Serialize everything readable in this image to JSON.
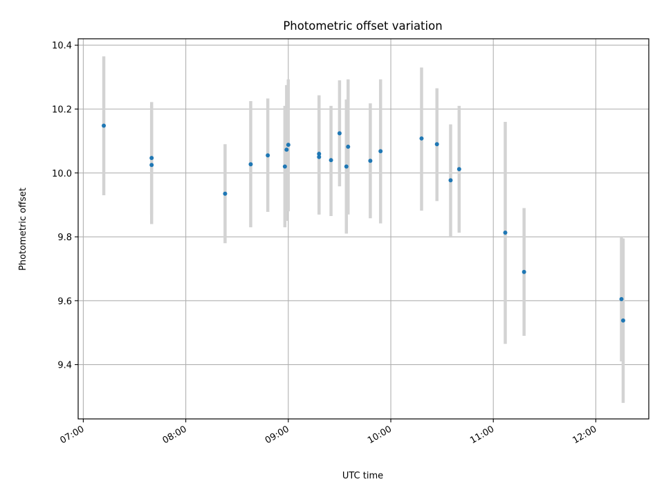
{
  "chart_data": {
    "type": "scatter",
    "title": "Photometric offset variation",
    "xlabel": "UTC time",
    "ylabel": "Photometric offset",
    "x_tick_labels": [
      "07:00",
      "08:00",
      "09:00",
      "10:00",
      "11:00",
      "12:00"
    ],
    "y_tick_labels": [
      "9.4",
      "9.6",
      "9.8",
      "10.0",
      "10.2",
      "10.4"
    ],
    "xlim": [
      "06:57",
      "12:31"
    ],
    "ylim": [
      9.23,
      10.42
    ],
    "grid": true,
    "series": [
      {
        "marker_color": "#1f77b4",
        "errorbar_color": "#d3d3d3",
        "points": [
          {
            "x": "07:12",
            "y": 10.148,
            "ylow": 9.93,
            "yhigh": 10.365
          },
          {
            "x": "07:40",
            "y": 10.047,
            "ylow": 9.87,
            "yhigh": 10.222
          },
          {
            "x": "07:40",
            "y": 10.025,
            "ylow": 9.84,
            "yhigh": 10.21
          },
          {
            "x": "08:23",
            "y": 9.935,
            "ylow": 9.78,
            "yhigh": 10.09
          },
          {
            "x": "08:38",
            "y": 10.027,
            "ylow": 9.83,
            "yhigh": 10.225
          },
          {
            "x": "08:48",
            "y": 10.055,
            "ylow": 9.878,
            "yhigh": 10.233
          },
          {
            "x": "08:58",
            "y": 10.02,
            "ylow": 9.83,
            "yhigh": 10.21
          },
          {
            "x": "08:59",
            "y": 10.073,
            "ylow": 9.85,
            "yhigh": 10.275
          },
          {
            "x": "09:00",
            "y": 10.088,
            "ylow": 9.88,
            "yhigh": 10.293
          },
          {
            "x": "09:18",
            "y": 10.06,
            "ylow": 9.87,
            "yhigh": 10.243
          },
          {
            "x": "09:18",
            "y": 10.05,
            "ylow": 9.87,
            "yhigh": 10.23
          },
          {
            "x": "09:25",
            "y": 10.04,
            "ylow": 9.865,
            "yhigh": 10.21
          },
          {
            "x": "09:30",
            "y": 10.124,
            "ylow": 9.958,
            "yhigh": 10.29
          },
          {
            "x": "09:34",
            "y": 10.02,
            "ylow": 9.81,
            "yhigh": 10.23
          },
          {
            "x": "09:35",
            "y": 10.082,
            "ylow": 9.87,
            "yhigh": 10.293
          },
          {
            "x": "09:48",
            "y": 10.038,
            "ylow": 9.858,
            "yhigh": 10.218
          },
          {
            "x": "09:54",
            "y": 10.068,
            "ylow": 9.842,
            "yhigh": 10.293
          },
          {
            "x": "10:18",
            "y": 10.108,
            "ylow": 9.882,
            "yhigh": 10.33
          },
          {
            "x": "10:27",
            "y": 10.09,
            "ylow": 9.912,
            "yhigh": 10.265
          },
          {
            "x": "10:35",
            "y": 9.977,
            "ylow": 9.8,
            "yhigh": 10.152
          },
          {
            "x": "10:40",
            "y": 10.012,
            "ylow": 9.813,
            "yhigh": 10.21
          },
          {
            "x": "11:07",
            "y": 9.813,
            "ylow": 9.465,
            "yhigh": 10.16
          },
          {
            "x": "11:18",
            "y": 9.69,
            "ylow": 9.49,
            "yhigh": 9.89
          },
          {
            "x": "12:15",
            "y": 9.605,
            "ylow": 9.41,
            "yhigh": 9.8
          },
          {
            "x": "12:16",
            "y": 9.538,
            "ylow": 9.28,
            "yhigh": 9.795
          }
        ]
      }
    ]
  }
}
